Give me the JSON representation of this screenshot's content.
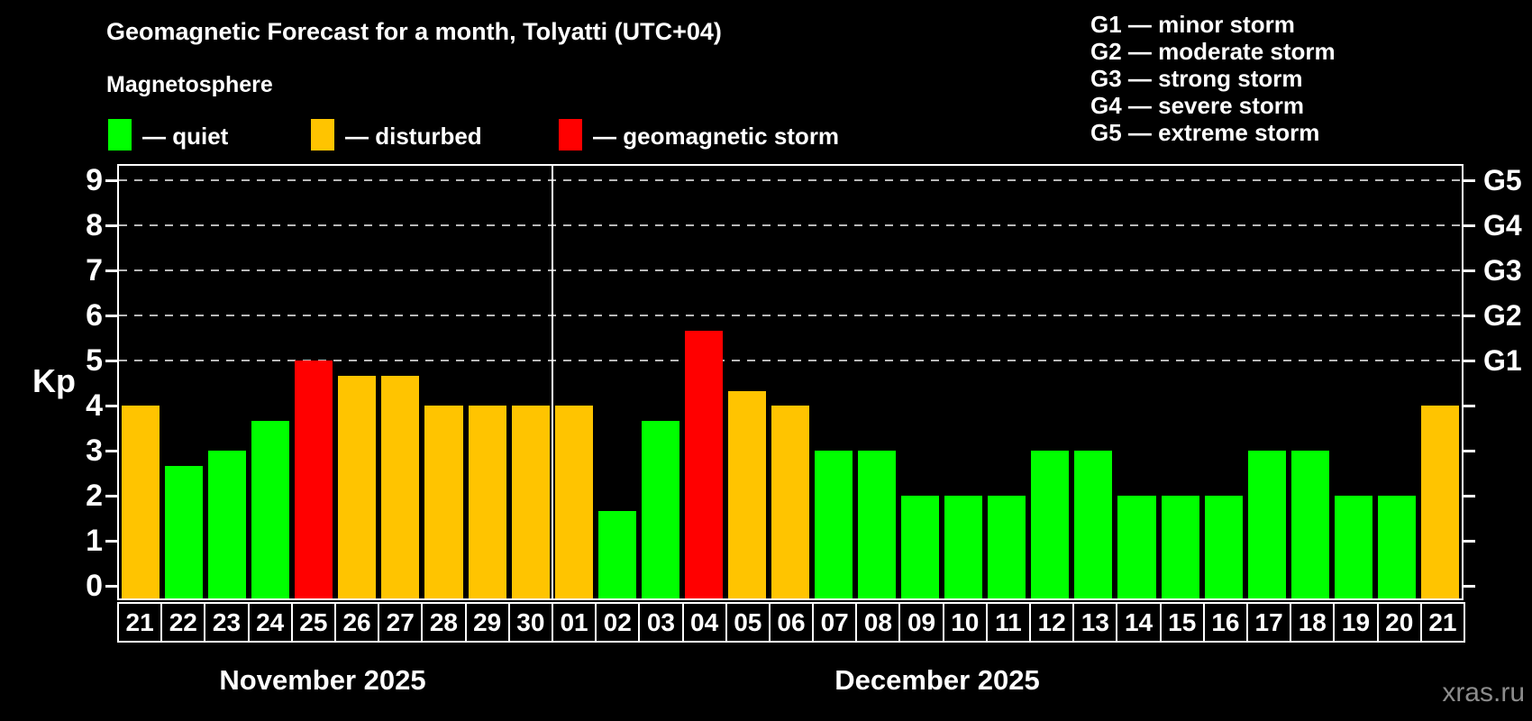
{
  "header": {
    "title": "Geomagnetic Forecast for a month, Tolyatti (UTC+04)",
    "subtitle": "Magnetosphere"
  },
  "legend": {
    "items": [
      {
        "name": "quiet",
        "label": "— quiet",
        "color": "#00ff00"
      },
      {
        "name": "disturbed",
        "label": "— disturbed",
        "color": "#ffc400"
      },
      {
        "name": "storm",
        "label": "— geomagnetic storm",
        "color": "#ff0000"
      }
    ]
  },
  "g_scale_legend": {
    "lines": [
      "G1 — minor storm",
      "G2 — moderate storm",
      "G3 — strong storm",
      "G4 — severe storm",
      "G5 — extreme storm"
    ]
  },
  "watermark": "xras.ru",
  "chart_data": {
    "type": "bar",
    "title": "Geomagnetic Forecast for a month, Tolyatti (UTC+04)",
    "ylabel": "Kp",
    "ylim": [
      0,
      9
    ],
    "y_ticks": [
      0,
      1,
      2,
      3,
      4,
      5,
      6,
      7,
      8,
      9
    ],
    "right_axis_labels": [
      {
        "label": "G1",
        "kp": 5
      },
      {
        "label": "G2",
        "kp": 6
      },
      {
        "label": "G3",
        "kp": 7
      },
      {
        "label": "G4",
        "kp": 8
      },
      {
        "label": "G5",
        "kp": 9
      }
    ],
    "gridlines": {
      "kp_levels": [
        5,
        6,
        7,
        8,
        9
      ],
      "style": "dashed"
    },
    "status_colors": {
      "quiet": "#00ff00",
      "disturbed": "#ffc400",
      "storm": "#ff0000"
    },
    "months": [
      {
        "label": "November 2025",
        "days": 10
      },
      {
        "label": "December 2025",
        "days": 21
      }
    ],
    "categories": [
      "21",
      "22",
      "23",
      "24",
      "25",
      "26",
      "27",
      "28",
      "29",
      "30",
      "01",
      "02",
      "03",
      "04",
      "05",
      "06",
      "07",
      "08",
      "09",
      "10",
      "11",
      "12",
      "13",
      "14",
      "15",
      "16",
      "17",
      "18",
      "19",
      "20",
      "21"
    ],
    "values": [
      4,
      2.67,
      3,
      3.67,
      5,
      4.67,
      4.67,
      4,
      4,
      4,
      4,
      1.67,
      3.67,
      5.67,
      4.33,
      4,
      3,
      3,
      2,
      2,
      2,
      3,
      3,
      2,
      2,
      2,
      3,
      3,
      2,
      2,
      4
    ],
    "statuses": [
      "disturbed",
      "quiet",
      "quiet",
      "quiet",
      "storm",
      "disturbed",
      "disturbed",
      "disturbed",
      "disturbed",
      "disturbed",
      "disturbed",
      "quiet",
      "quiet",
      "storm",
      "disturbed",
      "disturbed",
      "quiet",
      "quiet",
      "quiet",
      "quiet",
      "quiet",
      "quiet",
      "quiet",
      "quiet",
      "quiet",
      "quiet",
      "quiet",
      "quiet",
      "quiet",
      "quiet",
      "disturbed"
    ]
  }
}
